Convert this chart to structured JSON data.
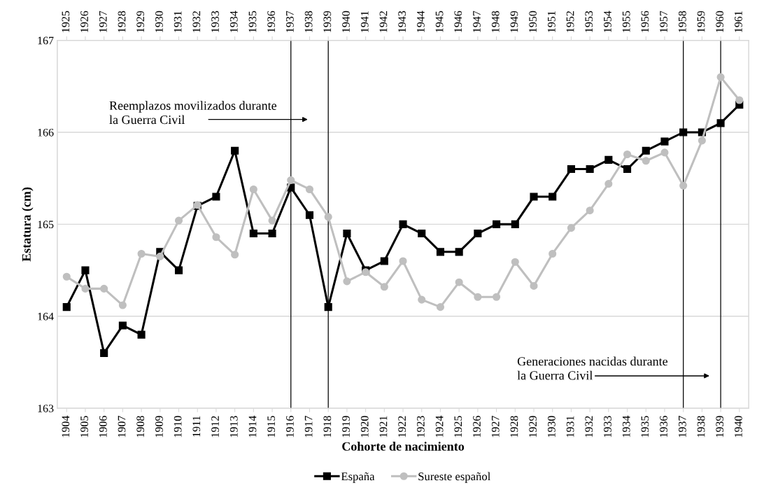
{
  "chart_data": {
    "type": "line",
    "xlabel": "Cohorte de nacimiento",
    "ylabel": "Estatura (cm)",
    "x": [
      1904,
      1905,
      1906,
      1907,
      1908,
      1909,
      1910,
      1911,
      1912,
      1913,
      1914,
      1915,
      1916,
      1917,
      1918,
      1919,
      1920,
      1921,
      1922,
      1923,
      1924,
      1925,
      1926,
      1927,
      1928,
      1929,
      1930,
      1931,
      1932,
      1933,
      1934,
      1935,
      1936,
      1937,
      1938,
      1939,
      1940
    ],
    "series": [
      {
        "name": "España",
        "color": "#000000",
        "marker": "square",
        "values": [
          164.1,
          164.5,
          163.6,
          163.9,
          163.8,
          164.7,
          164.5,
          165.2,
          165.3,
          165.8,
          164.9,
          164.9,
          165.4,
          165.1,
          164.1,
          164.9,
          164.5,
          164.6,
          165.0,
          164.9,
          164.7,
          164.7,
          164.9,
          165.0,
          165.0,
          165.3,
          165.3,
          165.6,
          165.6,
          165.7,
          165.6,
          165.8,
          165.9,
          166.0,
          166.0,
          166.1,
          166.3
        ]
      },
      {
        "name": "Sureste español",
        "color": "#bfbfbf",
        "marker": "circle",
        "values": [
          164.43,
          164.3,
          164.3,
          164.12,
          164.68,
          164.65,
          165.04,
          165.21,
          164.86,
          164.67,
          165.38,
          165.04,
          165.48,
          165.38,
          165.08,
          164.38,
          164.48,
          164.32,
          164.6,
          164.18,
          164.1,
          164.37,
          164.21,
          164.21,
          164.59,
          164.33,
          164.68,
          164.96,
          165.15,
          165.44,
          165.76,
          165.69,
          165.78,
          165.42,
          165.91,
          166.6,
          166.35
        ]
      }
    ],
    "xlim": [
      1903.5,
      1940.5
    ],
    "xticks": [
      1904,
      1905,
      1906,
      1907,
      1908,
      1909,
      1910,
      1911,
      1912,
      1913,
      1914,
      1915,
      1916,
      1917,
      1918,
      1919,
      1920,
      1921,
      1922,
      1923,
      1924,
      1925,
      1926,
      1927,
      1928,
      1929,
      1930,
      1931,
      1932,
      1933,
      1934,
      1935,
      1936,
      1937,
      1938,
      1939,
      1940
    ],
    "x2lim": [
      1924.5,
      1961.5
    ],
    "x2ticks": [
      1925,
      1926,
      1927,
      1928,
      1929,
      1930,
      1931,
      1932,
      1933,
      1934,
      1935,
      1936,
      1937,
      1938,
      1939,
      1940,
      1941,
      1942,
      1943,
      1944,
      1945,
      1946,
      1947,
      1948,
      1949,
      1950,
      1951,
      1952,
      1953,
      1954,
      1955,
      1956,
      1957,
      1958,
      1959,
      1960,
      1961
    ],
    "ylim": [
      163,
      167
    ],
    "yticks": [
      163,
      164,
      165,
      166,
      167
    ],
    "grid": "y",
    "legend": "bottom",
    "ref_lines": [
      {
        "axis": "x",
        "value": 1916,
        "color": "#000000"
      },
      {
        "axis": "x",
        "value": 1918,
        "color": "#000000"
      },
      {
        "axis": "x",
        "value": 1937,
        "color": "#000000"
      },
      {
        "axis": "x",
        "value": 1939,
        "color": "#000000"
      }
    ],
    "annotations": [
      "Reemplazos movilizados durante\nla Guerra Civil",
      "Generaciones nacidas durante\nla Guerra Civil"
    ]
  }
}
